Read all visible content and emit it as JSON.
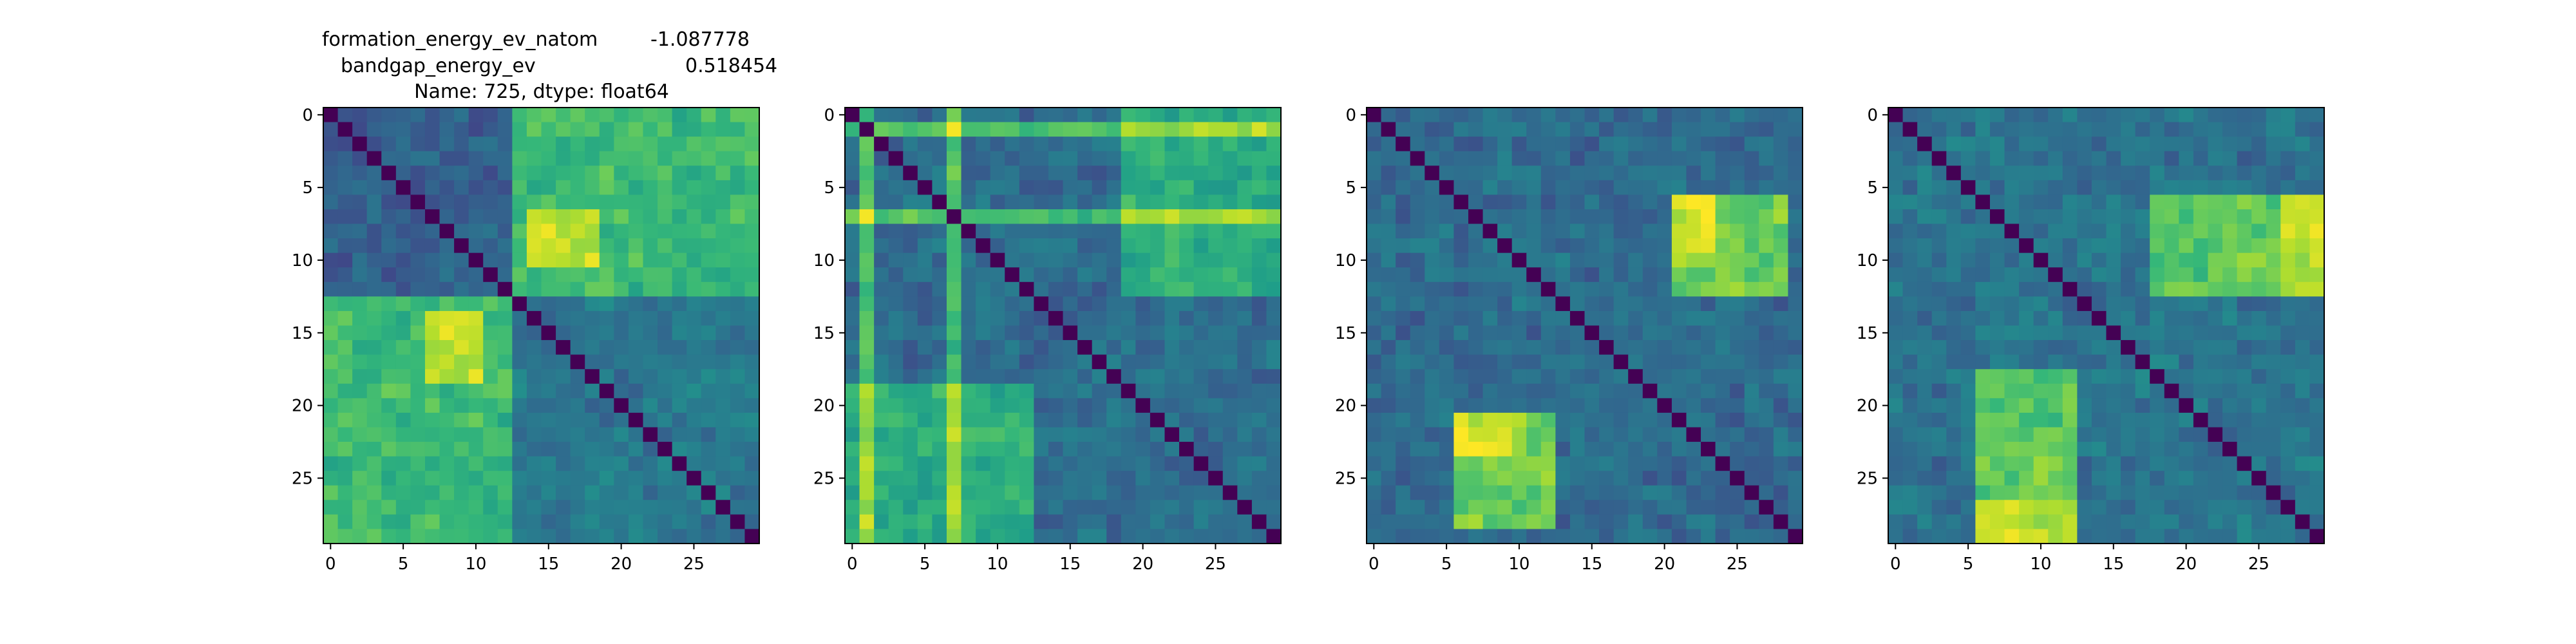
{
  "figure": {
    "title_lines": [
      {
        "name": "formation_energy_ev_natom",
        "value": "-1.087778"
      },
      {
        "name": "bandgap_energy_ev",
        "value": "0.518454"
      },
      {
        "text": "Name: 725, dtype: float64"
      }
    ]
  },
  "chart_data": [
    {
      "type": "heatmap",
      "shape": [
        30,
        30
      ],
      "colormap": "viridis",
      "x_ticks": [
        0,
        5,
        10,
        15,
        20,
        25
      ],
      "y_ticks": [
        0,
        5,
        10,
        15,
        20,
        25
      ],
      "block_boundaries": [
        13
      ],
      "intensity": {
        "within_block_a": 0.3,
        "within_block_b": 0.4,
        "cross_block": 0.68,
        "cross_hotspot": {
          "rows_a": [
            7,
            10
          ],
          "cols_b": [
            14,
            18
          ],
          "value": 0.92
        },
        "diagonal": 0.0
      }
    },
    {
      "type": "heatmap",
      "shape": [
        30,
        30
      ],
      "colormap": "viridis",
      "x_ticks": [
        0,
        5,
        10,
        15,
        20,
        25
      ],
      "y_ticks": [
        0,
        5,
        10,
        15,
        20,
        25
      ],
      "highlight_indices": [
        1,
        7
      ],
      "highlight_ranges": [
        [
          19,
          29
        ]
      ],
      "intensity": {
        "background": 0.35,
        "highlight_rows_cols": 0.7,
        "highlight_peak": 0.88,
        "diagonal": 0.0
      }
    },
    {
      "type": "heatmap",
      "shape": [
        30,
        30
      ],
      "colormap": "viridis",
      "x_ticks": [
        0,
        5,
        10,
        15,
        20,
        25
      ],
      "y_ticks": [
        0,
        5,
        10,
        15,
        20,
        25
      ],
      "hot_blocks": [
        {
          "rows": [
            6,
            12
          ],
          "cols": [
            21,
            28
          ],
          "value": 0.78
        },
        {
          "rows": [
            21,
            28
          ],
          "cols": [
            6,
            12
          ],
          "value": 0.78
        },
        {
          "rows": [
            21,
            23
          ],
          "cols": [
            6,
            10
          ],
          "value": 0.93
        }
      ],
      "intensity": {
        "background": 0.35,
        "diagonal": 0.0
      }
    },
    {
      "type": "heatmap",
      "shape": [
        30,
        30
      ],
      "colormap": "viridis",
      "x_ticks": [
        0,
        5,
        10,
        15,
        20,
        25
      ],
      "y_ticks": [
        0,
        5,
        10,
        15,
        20,
        25
      ],
      "hot_blocks": [
        {
          "rows": [
            6,
            12
          ],
          "cols": [
            18,
            29
          ],
          "value": 0.75
        },
        {
          "rows": [
            19,
            29
          ],
          "cols": [
            6,
            12
          ],
          "value": 0.75
        },
        {
          "rows": [
            27,
            29
          ],
          "cols": [
            6,
            12
          ],
          "value": 0.92
        },
        {
          "rows": [
            6,
            12
          ],
          "cols": [
            27,
            29
          ],
          "value": 0.92
        }
      ],
      "intensity": {
        "background": 0.38,
        "diagonal": 0.0
      }
    }
  ]
}
